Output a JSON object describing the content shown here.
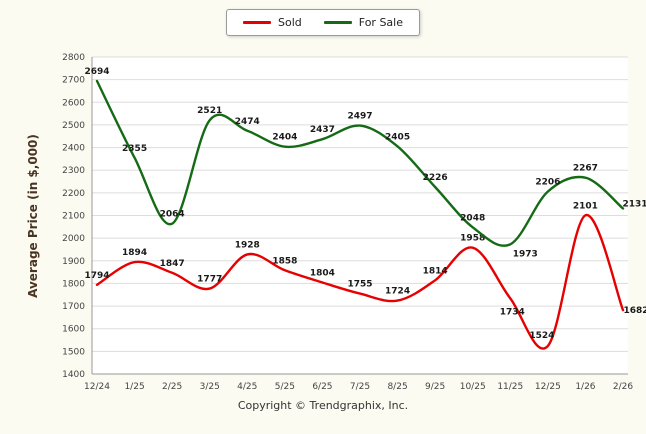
{
  "legend": {
    "items": [
      {
        "label": "Sold",
        "color": "#e60000"
      },
      {
        "label": "For Sale",
        "color": "#156b15"
      }
    ]
  },
  "chart_data": {
    "type": "line",
    "categories": [
      "12/24",
      "1/25",
      "2/25",
      "3/25",
      "4/25",
      "5/25",
      "6/25",
      "7/25",
      "8/25",
      "9/25",
      "10/25",
      "11/25",
      "12/25",
      "1/26",
      "2/26"
    ],
    "series": [
      {
        "name": "Sold",
        "color": "#e60000",
        "values": [
          1794,
          1894,
          1847,
          1777,
          1928,
          1858,
          1804,
          1755,
          1724,
          1814,
          1958,
          1734,
          1524,
          2101,
          1682
        ]
      },
      {
        "name": "For Sale",
        "color": "#156b15",
        "values": [
          2694,
          2355,
          2064,
          2521,
          2474,
          2404,
          2437,
          2497,
          2405,
          2226,
          2048,
          1973,
          2206,
          2267,
          2131
        ]
      }
    ],
    "title": "",
    "xlabel": "",
    "ylabel": "Average Price (in $,000)",
    "ylim": [
      1400,
      2800
    ],
    "ytick_step": 100,
    "grid": true,
    "legend_position": "top",
    "smooth": true
  },
  "footer": {
    "copyright": "Copyright © Trendgraphix, Inc."
  }
}
